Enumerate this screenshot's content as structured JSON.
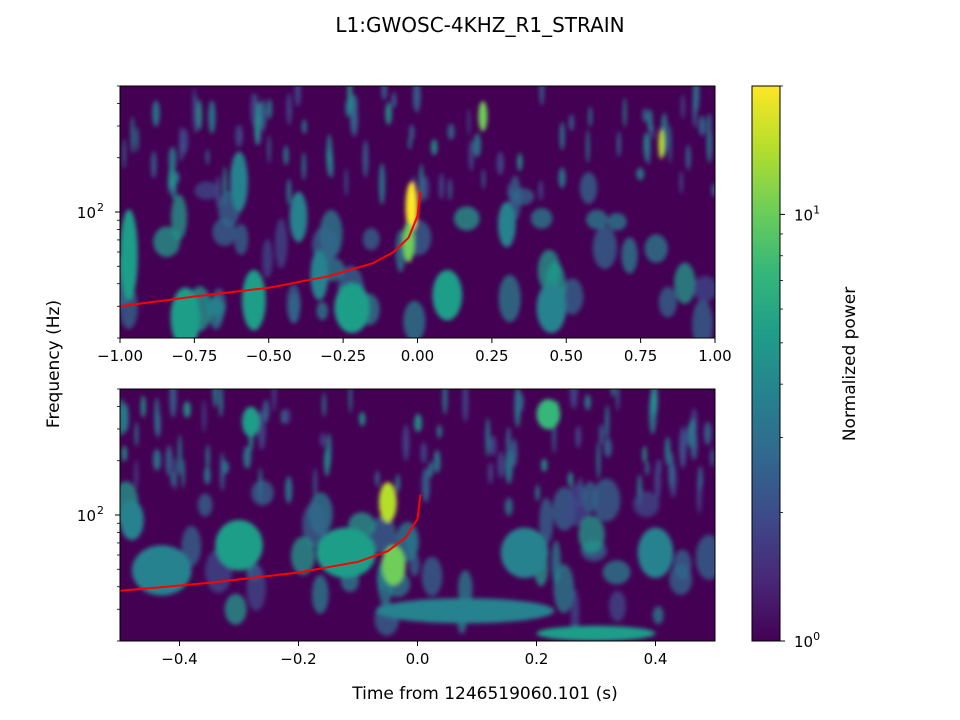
{
  "figure": {
    "title": "L1:GWOSC-4KHZ_R1_STRAIN",
    "ylabel": "Frequency (Hz)",
    "xlabel": "Time from 1246519060.101 (s)",
    "colorbar_label": "Normalized power"
  },
  "chart_data": [
    {
      "type": "heatmap",
      "panel": "top",
      "x_range": [
        -1.0,
        1.0
      ],
      "y_scale": "log",
      "y_range_hz": [
        20,
        500
      ],
      "x_ticks": [
        -1.0,
        -0.75,
        -0.5,
        -0.25,
        0.0,
        0.25,
        0.5,
        0.75,
        1.0
      ],
      "x_tick_labels": [
        "−1.00",
        "−0.75",
        "−0.50",
        "−0.25",
        "0.00",
        "0.25",
        "0.50",
        "0.75",
        "1.00"
      ],
      "y_tick_labels": [
        {
          "base": "10",
          "exp": "2",
          "value": 100
        }
      ],
      "overlay_track": {
        "color": "#ff0000",
        "description": "red chirp curve",
        "points": [
          [
            -1.0,
            30
          ],
          [
            -0.75,
            34
          ],
          [
            -0.5,
            38
          ],
          [
            -0.3,
            44
          ],
          [
            -0.15,
            52
          ],
          [
            -0.08,
            60
          ],
          [
            -0.03,
            72
          ],
          [
            0.0,
            95
          ],
          [
            0.01,
            130
          ]
        ]
      },
      "blobs": [
        [
          -0.97,
          0.33,
          0.03,
          0.18,
          0.5
        ],
        [
          -0.78,
          0.08,
          0.05,
          0.12,
          0.55
        ],
        [
          -0.55,
          0.15,
          0.04,
          0.12,
          0.5
        ],
        [
          -0.4,
          0.48,
          0.03,
          0.1,
          0.4
        ],
        [
          -0.33,
          0.25,
          0.03,
          0.1,
          0.45
        ],
        [
          -0.22,
          0.12,
          0.06,
          0.1,
          0.5
        ],
        [
          -0.02,
          0.52,
          0.02,
          0.1,
          0.95
        ],
        [
          -0.03,
          0.38,
          0.02,
          0.08,
          0.8
        ],
        [
          0.1,
          0.17,
          0.05,
          0.1,
          0.55
        ],
        [
          0.3,
          0.45,
          0.03,
          0.09,
          0.45
        ],
        [
          0.45,
          0.12,
          0.05,
          0.1,
          0.45
        ],
        [
          0.22,
          0.88,
          0.015,
          0.06,
          0.75
        ],
        [
          0.82,
          0.77,
          0.01,
          0.06,
          0.85
        ],
        [
          -0.6,
          0.62,
          0.03,
          0.12,
          0.4
        ]
      ]
    },
    {
      "type": "heatmap",
      "panel": "bottom",
      "x_range": [
        -0.5,
        0.5
      ],
      "y_scale": "log",
      "y_range_hz": [
        20,
        500
      ],
      "x_ticks": [
        -0.4,
        -0.2,
        0.0,
        0.2,
        0.4
      ],
      "x_tick_labels": [
        "−0.4",
        "−0.2",
        "0.0",
        "0.2",
        "0.4"
      ],
      "y_tick_labels": [
        {
          "base": "10",
          "exp": "2",
          "value": 100
        }
      ],
      "overlay_track": {
        "color": "#ff0000",
        "description": "red chirp curve",
        "points": [
          [
            -0.5,
            38
          ],
          [
            -0.35,
            42
          ],
          [
            -0.2,
            48
          ],
          [
            -0.1,
            55
          ],
          [
            -0.05,
            63
          ],
          [
            -0.02,
            75
          ],
          [
            0.0,
            95
          ],
          [
            0.005,
            130
          ]
        ]
      },
      "blobs": [
        [
          -0.43,
          0.28,
          0.05,
          0.1,
          0.45
        ],
        [
          -0.3,
          0.38,
          0.04,
          0.1,
          0.5
        ],
        [
          -0.12,
          0.35,
          0.05,
          0.1,
          0.5
        ],
        [
          -0.05,
          0.55,
          0.015,
          0.08,
          0.85
        ],
        [
          -0.04,
          0.3,
          0.02,
          0.08,
          0.8
        ],
        [
          0.08,
          0.12,
          0.15,
          0.05,
          0.45
        ],
        [
          0.22,
          0.9,
          0.02,
          0.06,
          0.7
        ],
        [
          0.3,
          0.03,
          0.1,
          0.03,
          0.5
        ],
        [
          0.18,
          0.35,
          0.04,
          0.1,
          0.45
        ],
        [
          0.4,
          0.35,
          0.03,
          0.1,
          0.4
        ],
        [
          -0.48,
          0.48,
          0.02,
          0.08,
          0.45
        ],
        [
          -0.28,
          0.87,
          0.015,
          0.06,
          0.55
        ]
      ]
    }
  ],
  "colorbar": {
    "scale": "log",
    "range": [
      1,
      20
    ],
    "tick_labels": [
      {
        "base": "10",
        "exp": "0",
        "value": 1
      },
      {
        "base": "10",
        "exp": "1",
        "value": 10
      }
    ],
    "colormap": [
      "#440154",
      "#482878",
      "#3e4a89",
      "#31688e",
      "#26828e",
      "#1f9e89",
      "#35b779",
      "#6ece58",
      "#b5de2b",
      "#fde725"
    ]
  }
}
